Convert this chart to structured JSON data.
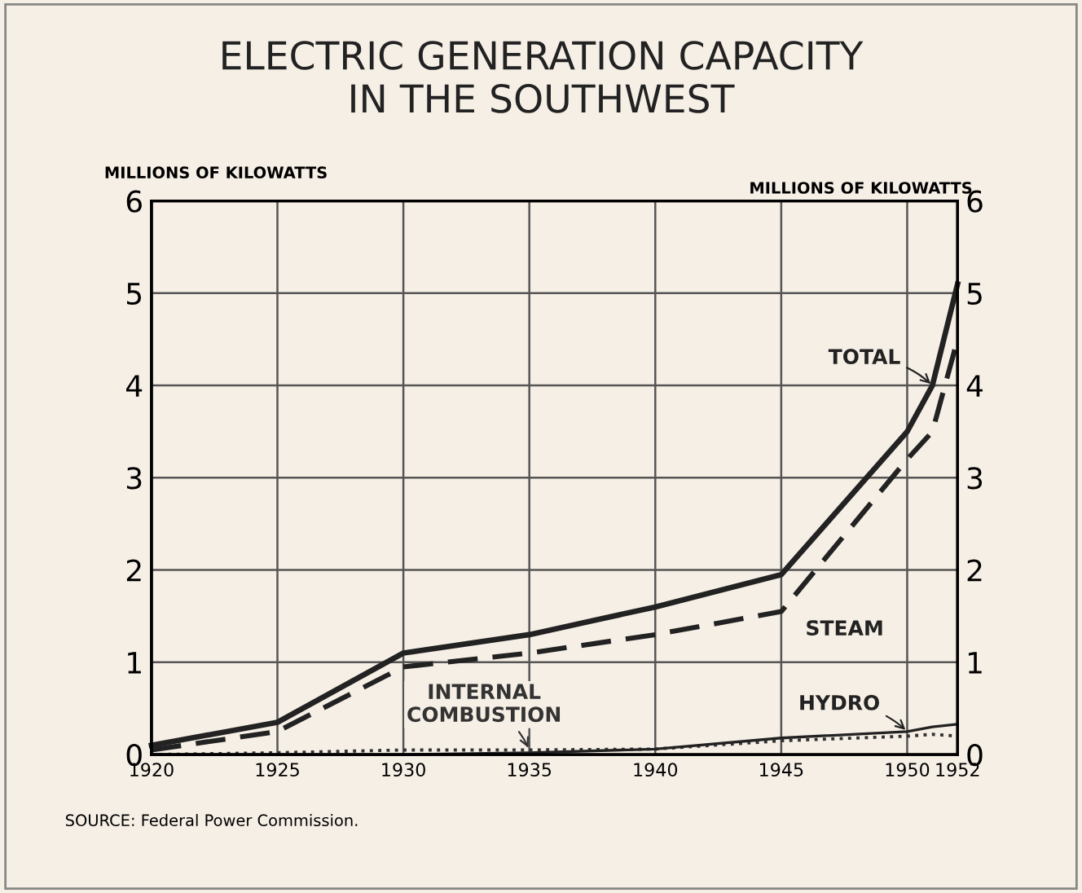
{
  "chart_data": {
    "type": "line",
    "title": "ELECTRIC GENERATION CAPACITY\nIN THE SOUTHWEST",
    "ylabel": "MILLIONS OF KILOWATTS",
    "y2label": "MILLIONS OF KILOWATTS",
    "x": [
      1920,
      1925,
      1930,
      1935,
      1940,
      1945,
      1950,
      1951,
      1952
    ],
    "series": [
      {
        "name": "TOTAL",
        "color": "#222222",
        "line_style": "solid",
        "values": [
          0.1,
          0.35,
          1.1,
          1.3,
          1.6,
          1.95,
          3.5,
          4.0,
          5.1
        ]
      },
      {
        "name": "STEAM",
        "color": "#222222",
        "line_style": "dashed",
        "values": [
          0.05,
          0.25,
          0.95,
          1.1,
          1.3,
          1.55,
          3.2,
          3.5,
          4.5
        ]
      },
      {
        "name": "INTERNAL\nCOMBUSTION",
        "color": "#333333",
        "line_style": "dotted",
        "values": [
          0.0,
          0.02,
          0.05,
          0.05,
          0.06,
          0.15,
          0.2,
          0.22,
          0.2
        ]
      },
      {
        "name": "HYDRO",
        "color": "#222222",
        "line_style": "solid",
        "values": [
          0.0,
          0.0,
          0.0,
          0.02,
          0.06,
          0.18,
          0.25,
          0.3,
          0.33
        ]
      }
    ],
    "xlim": [
      1920,
      1952
    ],
    "xticks": [
      1920,
      1925,
      1930,
      1935,
      1940,
      1945,
      1950,
      1952
    ],
    "ylim": [
      0,
      6
    ],
    "yticks": [
      0,
      1,
      2,
      3,
      4,
      5,
      6
    ],
    "y2lim": [
      0,
      6
    ],
    "y2ticks": [
      0,
      1,
      2,
      3,
      4,
      5,
      6
    ],
    "grid": true,
    "legend": false,
    "marker": "none",
    "annotations": [
      "SOURCE: Federal Power Commission."
    ]
  }
}
